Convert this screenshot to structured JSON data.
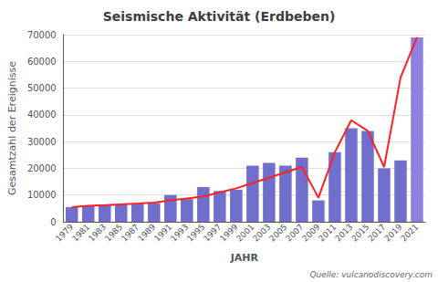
{
  "chart_data": {
    "type": "bar",
    "title": "Seismische Aktivität (Erdbeben)",
    "xlabel": "JAHR",
    "ylabel": "Gesamtzahl der Ereignisse",
    "annotations": [
      "Quelle: vulcanodiscovery.com"
    ],
    "categories": [
      "1979",
      "1981",
      "1983",
      "1985",
      "1987",
      "1989",
      "1991",
      "1993",
      "1995",
      "1997",
      "1999",
      "2001",
      "2003",
      "2005",
      "2007",
      "2009",
      "2011",
      "2013",
      "2015",
      "2017",
      "2019",
      "2021"
    ],
    "series": [
      {
        "type": "bar",
        "colors": [
          "#7070cc",
          "#7070cc",
          "#7070cc",
          "#7070cc",
          "#7070cc",
          "#7070cc",
          "#7070cc",
          "#7070cc",
          "#7070cc",
          "#7070cc",
          "#7070cc",
          "#7070cc",
          "#7070cc",
          "#7070cc",
          "#7070cc",
          "#7070cc",
          "#7070cc",
          "#7070cc",
          "#7070cc",
          "#7070cc",
          "#7070cc",
          "#9080dd"
        ],
        "values": [
          5500,
          6000,
          6200,
          6500,
          6800,
          7000,
          10000,
          8500,
          13000,
          11500,
          12000,
          21000,
          22000,
          21000,
          24000,
          8000,
          26000,
          35000,
          34000,
          20000,
          23000,
          69000
        ]
      },
      {
        "type": "line",
        "color": "#ff2020",
        "values": [
          5500,
          6000,
          6200,
          6500,
          6800,
          7200,
          8000,
          8700,
          9500,
          11000,
          12500,
          14500,
          16500,
          18500,
          20500,
          9000,
          26000,
          38000,
          34000,
          20500,
          54000,
          69000
        ]
      }
    ],
    "ylim": [
      0,
      70000
    ],
    "yticks": [
      0,
      10000,
      20000,
      30000,
      40000,
      50000,
      60000,
      70000
    ],
    "grid": true
  }
}
